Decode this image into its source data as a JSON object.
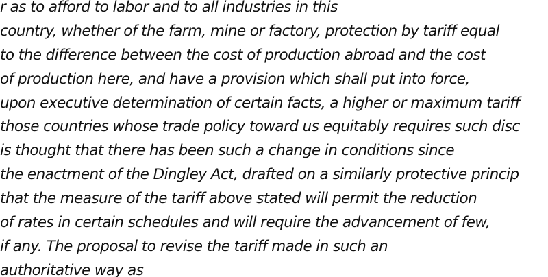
{
  "document": {
    "lines": [
      "r as to afford to labor and to all industries in this",
      "country, whether of the farm, mine or factory, protection by tariff equal",
      "to the difference between the cost of production abroad and the cost",
      "of production here, and have a provision which shall put into force,",
      "upon executive determination of certain facts, a higher or maximum tariff",
      "those countries whose trade policy toward us equitably requires such disc",
      "is thought that there has been such a change in conditions since",
      "the enactment of the Dingley Act, drafted on a similarly protective princip",
      "that the measure of the tariff above stated will permit the reduction",
      "of rates in certain schedules and will require the advancement of few,",
      "if any. The proposal to revise the tariff made in such an",
      "authoritative way as"
    ]
  }
}
